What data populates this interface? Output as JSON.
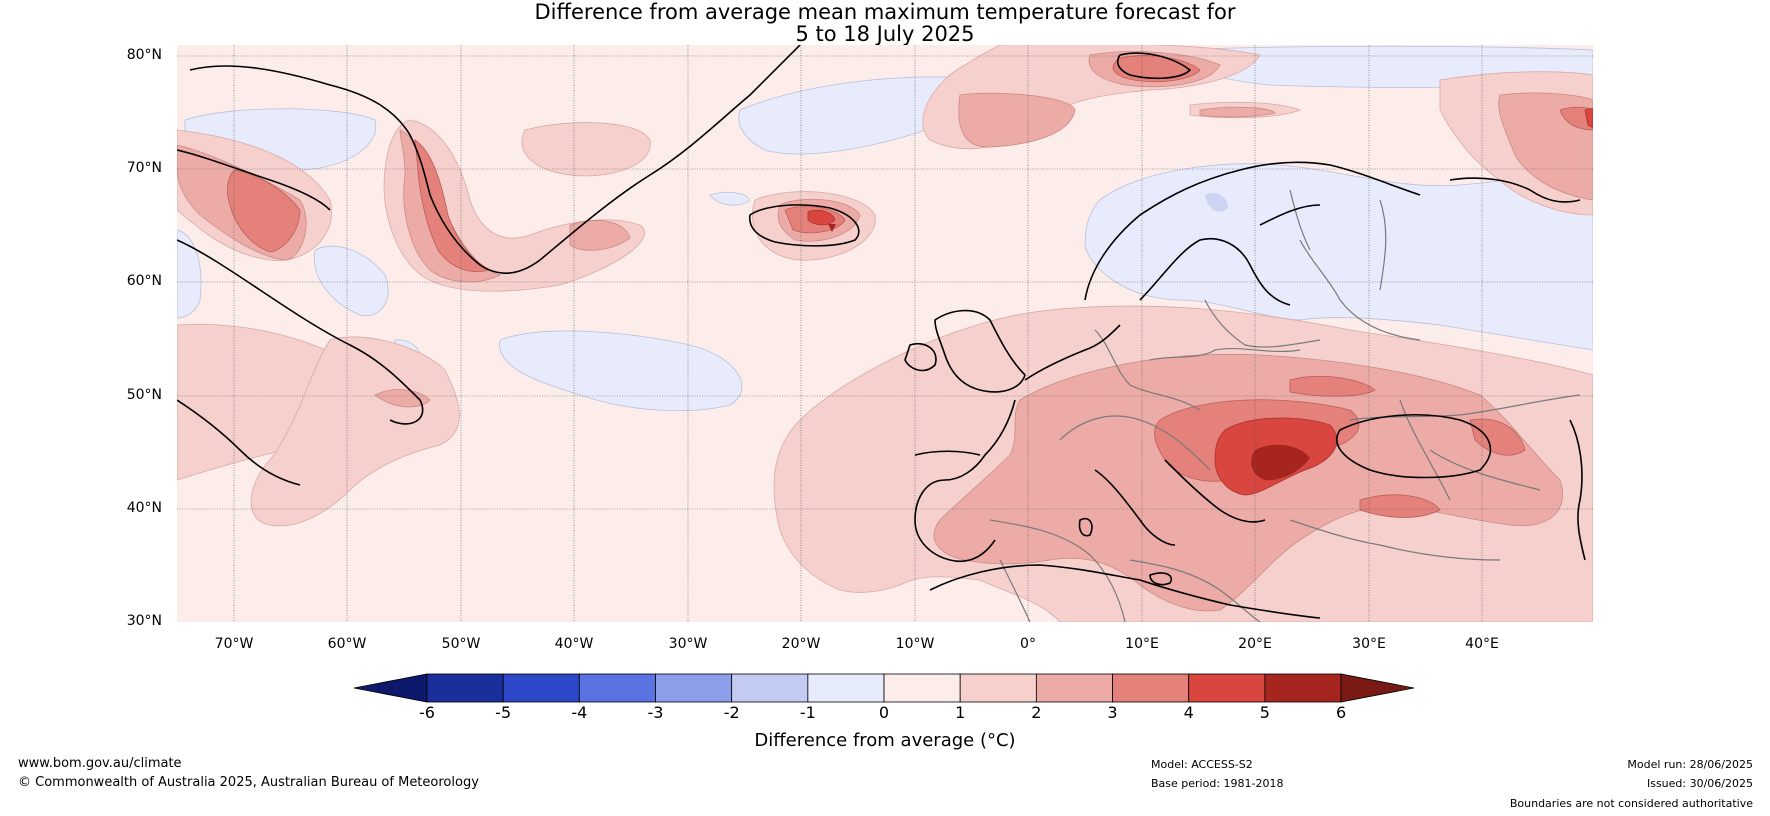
{
  "title": {
    "line1": "Difference from average mean maximum temperature forecast for",
    "line2": "5 to 18 July 2025"
  },
  "axes": {
    "lat_labels": [
      "80°N",
      "70°N",
      "60°N",
      "50°N",
      "40°N",
      "30°N"
    ],
    "lon_labels": [
      "70°W",
      "60°W",
      "50°W",
      "40°W",
      "30°W",
      "20°W",
      "10°W",
      "0°",
      "10°E",
      "20°E",
      "30°E",
      "40°E"
    ]
  },
  "colorbar": {
    "ticks": [
      "-6",
      "-5",
      "-4",
      "-3",
      "-2",
      "-1",
      "0",
      "1",
      "2",
      "3",
      "4",
      "5",
      "6"
    ],
    "colors": [
      "#1a2f9c",
      "#2d47c9",
      "#5a73e3",
      "#8c9de9",
      "#c3cbf3",
      "#e8ebfb",
      "#fcecea",
      "#f5d0cd",
      "#ecaba6",
      "#e4817a",
      "#d9463f",
      "#a6261f"
    ],
    "under_color": "#0d1a6b",
    "over_color": "#7a1a15",
    "label": "Difference from average (°C)"
  },
  "footer": {
    "website": "www.bom.gov.au/climate",
    "copyright": "© Commonwealth of Australia 2025, Australian Bureau of Meteorology",
    "model": "Model: ACCESS-S2",
    "base_period": "Base period: 1981-2018",
    "model_run": "Model run: 28/06/2025",
    "issued": "Issued: 30/06/2025",
    "disclaimer": "Boundaries are not considered authoritative"
  }
}
